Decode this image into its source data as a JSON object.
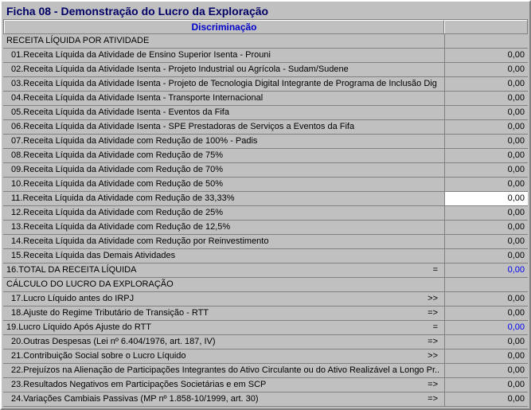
{
  "title": "Ficha 08 - Demonstração do Lucro da Exploração",
  "headerLabel": "Discriminação",
  "rows": [
    {
      "label": "RECEITA LÍQUIDA POR ATIVIDADE",
      "val": "",
      "arrow": "",
      "section": true,
      "indent": 0
    },
    {
      "label": "01.Receita Líquida da Atividade de Ensino Superior Isenta - Prouni",
      "val": "0,00",
      "arrow": "",
      "indent": 1
    },
    {
      "label": "02.Receita Líquida da Atividade Isenta - Projeto Industrial ou Agrícola - Sudam/Sudene",
      "val": "0,00",
      "arrow": "",
      "indent": 1
    },
    {
      "label": "03.Receita Líquida da Atividade Isenta - Projeto de Tecnologia Digital Integrante de Programa de Inclusão Dig",
      "val": "0,00",
      "arrow": "",
      "indent": 1
    },
    {
      "label": "04.Receita Líquida da Atividade Isenta - Transporte Internacional",
      "val": "0,00",
      "arrow": "",
      "indent": 1
    },
    {
      "label": "05.Receita Líquida da Atividade Isenta - Eventos da Fifa",
      "val": "0,00",
      "arrow": "",
      "indent": 1
    },
    {
      "label": "06.Receita Líquida da Atividade Isenta - SPE Prestadoras de Serviços a Eventos da Fifa",
      "val": "0,00",
      "arrow": "",
      "indent": 1
    },
    {
      "label": "07.Receita Líquida da Atividade com Redução de 100% - Padis",
      "val": "0,00",
      "arrow": "",
      "indent": 1
    },
    {
      "label": "08.Receita Líquida da Atividade com Redução de 75%",
      "val": "0,00",
      "arrow": "",
      "indent": 1
    },
    {
      "label": "09.Receita Líquida da Atividade com Redução de 70%",
      "val": "0,00",
      "arrow": "",
      "indent": 1
    },
    {
      "label": "10.Receita Líquida da Atividade com Redução de 50%",
      "val": "0,00",
      "arrow": "",
      "indent": 1
    },
    {
      "label": "11.Receita Líquida da Atividade com Redução de 33,33%",
      "val": "0,00",
      "arrow": "",
      "indent": 1,
      "highlight": true
    },
    {
      "label": "12.Receita Líquida da Atividade com Redução de 25%",
      "val": "0,00",
      "arrow": "",
      "indent": 1
    },
    {
      "label": "13.Receita Líquida da Atividade com Redução de 12,5%",
      "val": "0,00",
      "arrow": "",
      "indent": 1
    },
    {
      "label": "14.Receita Líquida da Atividade com Redução por Reinvestimento",
      "val": "0,00",
      "arrow": "",
      "indent": 1
    },
    {
      "label": "15.Receita Líquida das Demais Atividades",
      "val": "0,00",
      "arrow": "",
      "indent": 1
    },
    {
      "label": "16.TOTAL DA RECEITA LÍQUIDA",
      "val": "0,00",
      "arrow": "=",
      "indent": 0,
      "calc": true
    },
    {
      "label": "CÁLCULO DO LUCRO DA EXPLORAÇÃO",
      "val": "",
      "arrow": "",
      "section": true,
      "indent": 0
    },
    {
      "label": "17.Lucro Líquido antes do IRPJ",
      "val": "0,00",
      "arrow": ">>",
      "indent": 1
    },
    {
      "label": "18.Ajuste do Regime Tributário de Transição - RTT",
      "val": "0,00",
      "arrow": "=>",
      "indent": 1
    },
    {
      "label": "19.Lucro Líquido Após Ajuste do RTT",
      "val": "0,00",
      "arrow": "=",
      "indent": 0,
      "calc": true
    },
    {
      "label": "20.Outras Despesas (Lei nº 6.404/1976, art. 187, IV)",
      "val": "0,00",
      "arrow": "=>",
      "indent": 1
    },
    {
      "label": "21.Contribuição Social sobre o Lucro Líquido",
      "val": "0,00",
      "arrow": ">>",
      "indent": 1
    },
    {
      "label": "22.Prejuízos na Alienação de Participações Integrantes do Ativo Circulante ou do Ativo Realizável a Longo Pr..",
      "val": "0,00",
      "arrow": ">>",
      "indent": 1
    },
    {
      "label": "23.Resultados Negativos em Participações Societárias e em SCP",
      "val": "0,00",
      "arrow": "=>",
      "indent": 1
    },
    {
      "label": "24.Variações Cambiais Passivas (MP nº 1.858-10/1999, art. 30)",
      "val": "0,00",
      "arrow": "=>",
      "indent": 1
    }
  ]
}
